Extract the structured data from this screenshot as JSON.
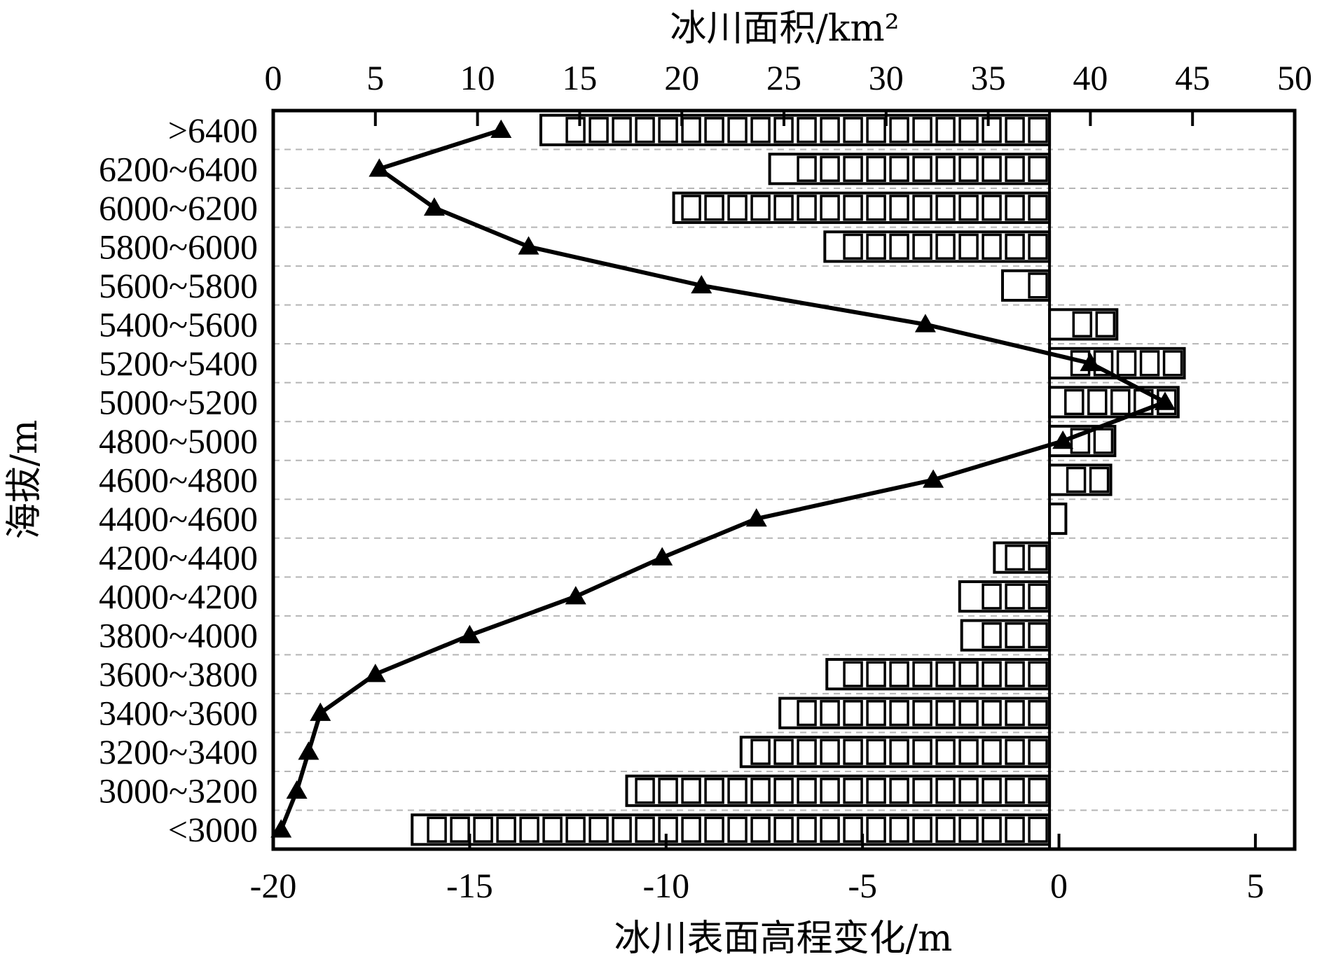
{
  "chart_data": {
    "type": "bar+line",
    "categories": [
      ">6400",
      "6200~6400",
      "6000~6200",
      "5800~6000",
      "5600~5800",
      "5400~5600",
      "5200~5400",
      "5000~5200",
      "4800~5000",
      "4600~4800",
      "4400~4600",
      "4200~4400",
      "4000~4200",
      "3800~4000",
      "3600~3800",
      "3400~3600",
      "3200~3400",
      "3000~3200",
      "<3000"
    ],
    "top_axis": {
      "title": "冰川面积/km²",
      "range": [
        0,
        50
      ],
      "ticks": [
        "0",
        "5",
        "10",
        "15",
        "20",
        "25",
        "30",
        "35",
        "40",
        "45",
        "50"
      ],
      "tick_values": [
        0,
        5,
        10,
        15,
        20,
        25,
        30,
        35,
        40,
        45,
        50
      ]
    },
    "bottom_axis": {
      "title": "冰川表面高程变化/m",
      "range": [
        -20,
        6
      ],
      "ticks": [
        "-20",
        "-15",
        "-10",
        "-5",
        "0",
        "5"
      ],
      "tick_values": [
        -20,
        -15,
        -10,
        -5,
        0,
        5
      ]
    },
    "y_axis": {
      "title": "海拔/m"
    },
    "area_bars": {
      "baseline_area": 38,
      "bar_end_area": [
        13.1,
        24.3,
        19.6,
        27.0,
        35.7,
        41.3,
        44.6,
        44.3,
        41.2,
        41.0,
        38.8,
        35.3,
        33.6,
        33.7,
        27.1,
        24.8,
        22.9,
        17.3,
        6.8
      ]
    },
    "elevation_change": {
      "values": [
        -14.2,
        -17.3,
        -15.9,
        -13.5,
        -9.1,
        -3.4,
        0.8,
        2.7,
        0.1,
        -3.2,
        -7.7,
        -10.1,
        -12.3,
        -15.0,
        -17.4,
        -18.8,
        -19.1,
        -19.4,
        -19.8
      ]
    },
    "grid": true
  }
}
